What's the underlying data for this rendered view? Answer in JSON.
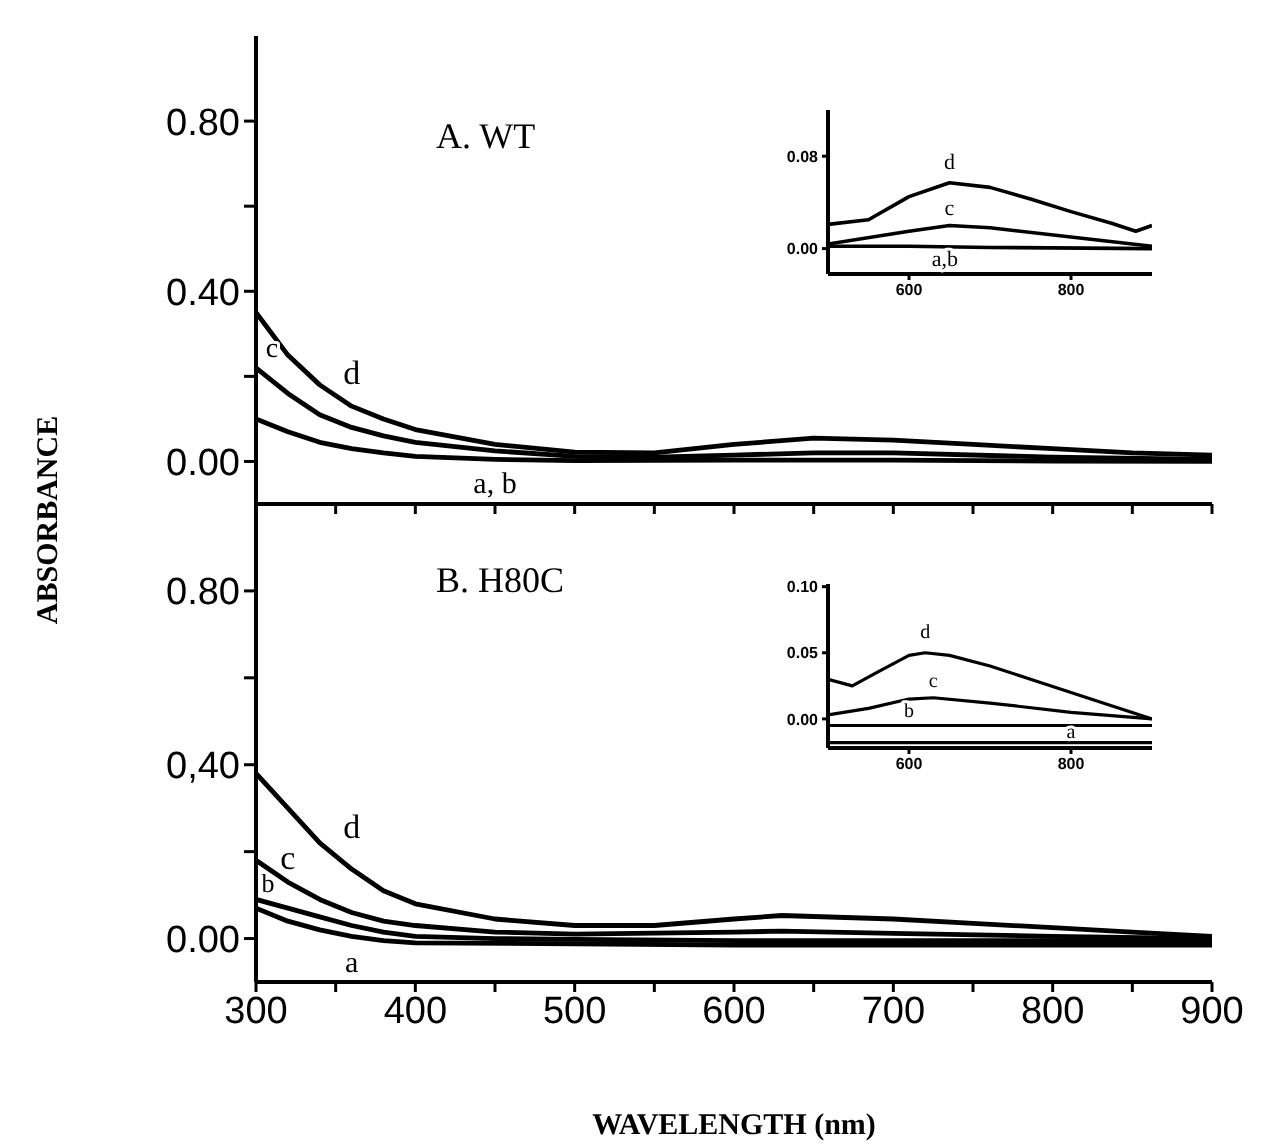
{
  "chart_data": [
    {
      "type": "line",
      "ylabel": "ABSORBANCE",
      "annotations": [
        "A. WT"
      ],
      "xlim": [
        300,
        900
      ],
      "ylim": [
        -0.1,
        1.0
      ],
      "xticks": [
        300,
        {
          "value": 350,
          "label": null
        },
        400,
        {
          "value": 450,
          "label": null
        },
        500,
        {
          "value": 550,
          "label": null
        },
        600,
        {
          "value": 650,
          "label": null
        },
        700,
        {
          "value": 750,
          "label": null
        },
        800,
        {
          "value": 850,
          "label": null
        },
        900
      ],
      "yticks": [
        {
          "value": 0,
          "label": "0.00"
        },
        {
          "value": 0.2,
          "label": null
        },
        {
          "value": 0.4,
          "label": "0.40"
        },
        {
          "value": 0.6,
          "label": null
        },
        {
          "value": 0.8,
          "label": "0.80"
        }
      ],
      "tick_labels": "y",
      "line_style": "solid",
      "series": [
        {
          "name": "d",
          "color": "#000000",
          "x": [
            300,
            320,
            340,
            360,
            380,
            400,
            450,
            500,
            550,
            600,
            650,
            700,
            750,
            800,
            850,
            900
          ],
          "values": [
            0.35,
            0.25,
            0.18,
            0.13,
            0.1,
            0.075,
            0.04,
            0.022,
            0.02,
            0.04,
            0.055,
            0.05,
            0.04,
            0.03,
            0.02,
            0.015
          ]
        },
        {
          "name": "c",
          "color": "#000000",
          "x": [
            300,
            320,
            340,
            360,
            380,
            400,
            450,
            500,
            550,
            600,
            650,
            700,
            800,
            900
          ],
          "values": [
            0.22,
            0.16,
            0.11,
            0.08,
            0.06,
            0.045,
            0.025,
            0.012,
            0.01,
            0.015,
            0.02,
            0.02,
            0.01,
            0.005
          ]
        },
        {
          "name": "a, b",
          "color": "#000000",
          "x": [
            300,
            320,
            340,
            360,
            380,
            400,
            450,
            500,
            600,
            700,
            800,
            900
          ],
          "values": [
            0.1,
            0.07,
            0.045,
            0.03,
            0.02,
            0.012,
            0.005,
            0.002,
            0.003,
            0.003,
            0.001,
            0
          ]
        }
      ]
    },
    {
      "type": "line",
      "xlim": [
        500,
        900
      ],
      "ylim": [
        -0.022,
        0.12
      ],
      "xticks": [
        600,
        800
      ],
      "yticks": [
        {
          "value": 0,
          "label": "0.00"
        },
        {
          "value": 0.08,
          "label": "0.08"
        }
      ],
      "line_style": "solid",
      "series": [
        {
          "name": "d",
          "color": "#000000",
          "x": [
            500,
            550,
            600,
            650,
            700,
            750,
            800,
            850,
            880,
            900
          ],
          "values": [
            0.021,
            0.025,
            0.045,
            0.057,
            0.053,
            0.043,
            0.032,
            0.022,
            0.015,
            0.02
          ]
        },
        {
          "name": "c",
          "color": "#000000",
          "x": [
            500,
            600,
            650,
            700,
            800,
            900
          ],
          "values": [
            0.004,
            0.015,
            0.02,
            0.018,
            0.01,
            0.002
          ]
        },
        {
          "name": "a,b",
          "color": "#000000",
          "x": [
            500,
            600,
            700,
            900
          ],
          "values": [
            0.002,
            0.002,
            0.001,
            0
          ]
        }
      ]
    },
    {
      "type": "line",
      "xlabel": "WAVELENGTH (nm)",
      "annotations": [
        "B. H80C"
      ],
      "xlim": [
        300,
        900
      ],
      "ylim": [
        -0.1,
        1.0
      ],
      "xticks": [
        300,
        {
          "value": 350,
          "label": null
        },
        400,
        {
          "value": 450,
          "label": null
        },
        500,
        {
          "value": 550,
          "label": null
        },
        600,
        {
          "value": 650,
          "label": null
        },
        700,
        {
          "value": 750,
          "label": null
        },
        800,
        {
          "value": 850,
          "label": null
        },
        900
      ],
      "yticks": [
        {
          "value": 0,
          "label": "0.00"
        },
        {
          "value": 0.2,
          "label": null
        },
        {
          "value": 0.4,
          "label": "0,40"
        },
        {
          "value": 0.6,
          "label": null
        },
        {
          "value": 0.8,
          "label": "0.80"
        }
      ],
      "line_style": "solid",
      "series": [
        {
          "name": "d",
          "color": "#000000",
          "x": [
            300,
            320,
            340,
            360,
            380,
            400,
            450,
            500,
            550,
            600,
            630,
            700,
            750,
            800,
            850,
            900
          ],
          "values": [
            0.38,
            0.3,
            0.22,
            0.16,
            0.11,
            0.08,
            0.045,
            0.03,
            0.03,
            0.045,
            0.053,
            0.045,
            0.035,
            0.025,
            0.015,
            0.005
          ]
        },
        {
          "name": "c",
          "color": "#000000",
          "x": [
            300,
            320,
            340,
            360,
            380,
            400,
            450,
            500,
            600,
            630,
            700,
            800,
            900
          ],
          "values": [
            0.18,
            0.13,
            0.09,
            0.06,
            0.04,
            0.03,
            0.015,
            0.01,
            0.015,
            0.017,
            0.012,
            0.005,
            0
          ]
        },
        {
          "name": "b",
          "color": "#000000",
          "x": [
            300,
            320,
            340,
            360,
            380,
            400,
            450,
            500,
            600,
            700,
            800,
            900
          ],
          "values": [
            0.09,
            0.07,
            0.05,
            0.03,
            0.015,
            0.005,
            0,
            -0.002,
            -0.005,
            -0.005,
            -0.005,
            -0.005
          ]
        },
        {
          "name": "a",
          "color": "#000000",
          "x": [
            300,
            320,
            340,
            360,
            380,
            400,
            500,
            600,
            700,
            800,
            900
          ],
          "values": [
            0.07,
            0.04,
            0.02,
            0.005,
            -0.005,
            -0.01,
            -0.012,
            -0.015,
            -0.015,
            -0.015,
            -0.015
          ]
        }
      ]
    },
    {
      "type": "line",
      "xlim": [
        500,
        900
      ],
      "ylim": [
        -0.022,
        0.102
      ],
      "xticks": [
        600,
        800
      ],
      "yticks": [
        {
          "value": 0,
          "label": "0.00"
        },
        {
          "value": 0.05,
          "label": "0.05"
        },
        {
          "value": 0.1,
          "label": "0.10"
        }
      ],
      "line_style": "solid",
      "series": [
        {
          "name": "d",
          "color": "#000000",
          "x": [
            500,
            530,
            560,
            600,
            620,
            650,
            700,
            750,
            800,
            850,
            900
          ],
          "values": [
            0.03,
            0.025,
            0.035,
            0.048,
            0.05,
            0.048,
            0.04,
            0.03,
            0.02,
            0.01,
            0
          ]
        },
        {
          "name": "c",
          "color": "#000000",
          "x": [
            500,
            550,
            600,
            630,
            700,
            800,
            900
          ],
          "values": [
            0.003,
            0.008,
            0.015,
            0.016,
            0.012,
            0.005,
            0
          ]
        },
        {
          "name": "b",
          "color": "#000000",
          "x": [
            500,
            600,
            700,
            800,
            900
          ],
          "values": [
            -0.005,
            -0.005,
            -0.005,
            -0.005,
            -0.005
          ]
        },
        {
          "name": "a",
          "color": "#000000",
          "x": [
            500,
            600,
            700,
            800,
            900
          ],
          "values": [
            -0.018,
            -0.018,
            -0.018,
            -0.018,
            -0.018
          ]
        }
      ]
    }
  ]
}
